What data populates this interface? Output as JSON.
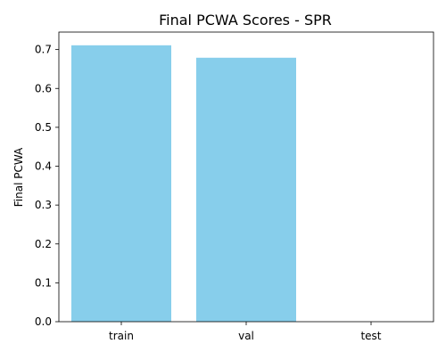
{
  "chart_data": {
    "type": "bar",
    "title": "Final PCWA Scores - SPR",
    "xlabel": "",
    "ylabel": "Final PCWA",
    "categories": [
      "train",
      "val",
      "test"
    ],
    "values": [
      0.711,
      0.679,
      0.0
    ],
    "ylim": [
      0,
      0.745
    ],
    "yticks": [
      0.0,
      0.1,
      0.2,
      0.3,
      0.4,
      0.5,
      0.6,
      0.7
    ],
    "ytick_labels": [
      "0.0",
      "0.1",
      "0.2",
      "0.3",
      "0.4",
      "0.5",
      "0.6",
      "0.7"
    ],
    "bar_color": "#87ceeb",
    "axis_color": "#000000",
    "grid": false,
    "legend": "none"
  }
}
